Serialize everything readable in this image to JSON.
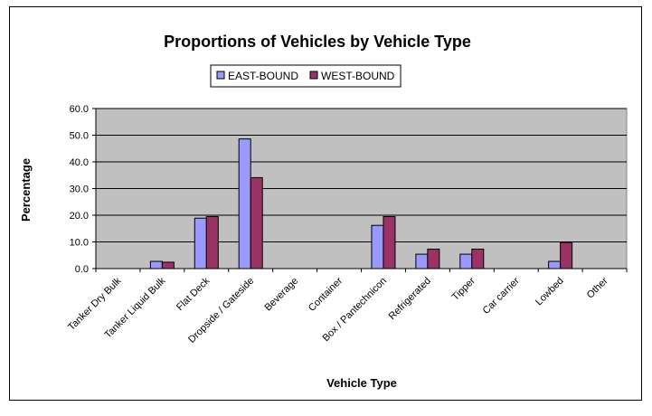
{
  "chart_data": {
    "type": "bar",
    "title": "Proportions of Vehicles by Vehicle Type",
    "xlabel": "Vehicle Type",
    "ylabel": "Percentage",
    "ylim": [
      0,
      60
    ],
    "yticks": [
      "0.0",
      "10.0",
      "20.0",
      "30.0",
      "40.0",
      "50.0",
      "60.0"
    ],
    "grid": true,
    "legend_position": "top",
    "categories": [
      "Tanker Dry Bulk",
      "Tanker Liquid Bulk",
      "Flat Deck",
      "Dropside / Gateside",
      "Beverage",
      "Container",
      "Box / Pantechnicon",
      "Refrigerated",
      "Tipper",
      "Car carrier",
      "Lowbed",
      "Other"
    ],
    "series": [
      {
        "name": "EAST-BOUND",
        "color": "#9999ff",
        "values": [
          0,
          2.7,
          18.9,
          48.6,
          0,
          0,
          16.2,
          5.4,
          5.4,
          0,
          2.7,
          0
        ]
      },
      {
        "name": "WEST-BOUND",
        "color": "#993366",
        "values": [
          0,
          2.4,
          19.5,
          34.1,
          0,
          0,
          19.5,
          7.3,
          7.3,
          0,
          9.8,
          0
        ]
      }
    ],
    "plot_background": "#c0c0c0"
  }
}
